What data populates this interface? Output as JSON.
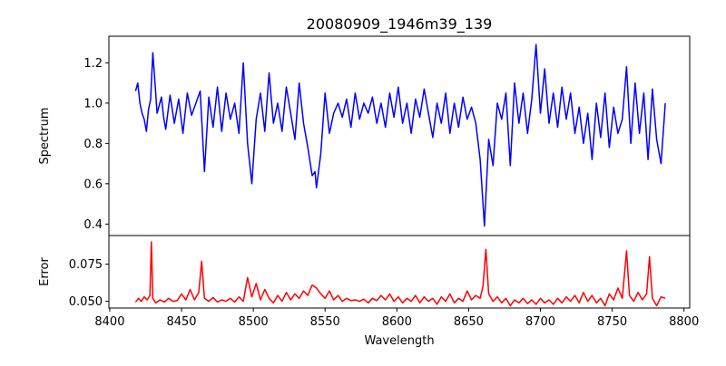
{
  "chart_data": [
    {
      "type": "line",
      "title": "20080909_1946m39_139",
      "xlabel": "",
      "ylabel": "Spectrum",
      "xlim": [
        8399.4,
        8804
      ],
      "ylim": [
        0.343,
        1.332
      ],
      "xticks": [
        8400,
        8450,
        8500,
        8550,
        8600,
        8650,
        8700,
        8750,
        8800
      ],
      "yticks": [
        "0.4",
        "0.6",
        "0.8",
        "1.0",
        "1.2"
      ],
      "color": "#0000ff",
      "series": [
        {
          "name": "Spectrum",
          "points": [
            [
              8418,
              1.06
            ],
            [
              8419.5,
              1.1
            ],
            [
              8421,
              1.0
            ],
            [
              8422.5,
              0.95
            ],
            [
              8424,
              0.92
            ],
            [
              8425.5,
              0.86
            ],
            [
              8427,
              0.97
            ],
            [
              8428.5,
              1.02
            ],
            [
              8430,
              1.25
            ],
            [
              8431.5,
              1.1
            ],
            [
              8433,
              0.95
            ],
            [
              8436,
              1.03
            ],
            [
              8437.5,
              0.93
            ],
            [
              8439,
              0.87
            ],
            [
              8442,
              1.04
            ],
            [
              8445,
              0.9
            ],
            [
              8448,
              1.02
            ],
            [
              8451,
              0.85
            ],
            [
              8454,
              1.05
            ],
            [
              8457,
              0.94
            ],
            [
              8460,
              1.0
            ],
            [
              8463,
              1.06
            ],
            [
              8466,
              0.66
            ],
            [
              8469,
              1.03
            ],
            [
              8472,
              0.88
            ],
            [
              8475,
              1.08
            ],
            [
              8478,
              0.86
            ],
            [
              8481,
              1.05
            ],
            [
              8484,
              0.92
            ],
            [
              8487,
              1.0
            ],
            [
              8490,
              0.85
            ],
            [
              8493,
              1.2
            ],
            [
              8496,
              0.8
            ],
            [
              8499,
              0.6
            ],
            [
              8502,
              0.92
            ],
            [
              8505,
              1.05
            ],
            [
              8508,
              0.86
            ],
            [
              8511,
              1.15
            ],
            [
              8514,
              0.9
            ],
            [
              8517,
              1.0
            ],
            [
              8520,
              0.86
            ],
            [
              8523,
              1.08
            ],
            [
              8526,
              0.95
            ],
            [
              8529,
              0.82
            ],
            [
              8532,
              1.1
            ],
            [
              8535,
              0.9
            ],
            [
              8538,
              0.78
            ],
            [
              8541,
              0.64
            ],
            [
              8543,
              0.66
            ],
            [
              8544,
              0.58
            ],
            [
              8547,
              0.75
            ],
            [
              8550,
              1.05
            ],
            [
              8553,
              0.85
            ],
            [
              8556,
              0.95
            ],
            [
              8559,
              1.0
            ],
            [
              8562,
              0.93
            ],
            [
              8565,
              1.02
            ],
            [
              8568,
              0.88
            ],
            [
              8571,
              1.05
            ],
            [
              8574,
              0.92
            ],
            [
              8577,
              1.0
            ],
            [
              8580,
              0.95
            ],
            [
              8583,
              1.03
            ],
            [
              8586,
              0.9
            ],
            [
              8589,
              1.0
            ],
            [
              8592,
              0.88
            ],
            [
              8595,
              1.05
            ],
            [
              8598,
              0.93
            ],
            [
              8601,
              1.08
            ],
            [
              8604,
              0.9
            ],
            [
              8607,
              1.0
            ],
            [
              8610,
              0.85
            ],
            [
              8613,
              1.02
            ],
            [
              8616,
              0.93
            ],
            [
              8619,
              1.07
            ],
            [
              8622,
              0.95
            ],
            [
              8625,
              0.83
            ],
            [
              8628,
              1.0
            ],
            [
              8631,
              0.9
            ],
            [
              8634,
              1.05
            ],
            [
              8637,
              0.85
            ],
            [
              8640,
              1.0
            ],
            [
              8643,
              0.88
            ],
            [
              8646,
              1.03
            ],
            [
              8649,
              0.92
            ],
            [
              8652,
              0.98
            ],
            [
              8655,
              0.9
            ],
            [
              8658,
              0.72
            ],
            [
              8661,
              0.39
            ],
            [
              8664,
              0.82
            ],
            [
              8667,
              0.69
            ],
            [
              8670,
              1.0
            ],
            [
              8673,
              0.92
            ],
            [
              8676,
              1.05
            ],
            [
              8679,
              0.69
            ],
            [
              8682,
              1.1
            ],
            [
              8685,
              0.9
            ],
            [
              8688,
              1.05
            ],
            [
              8691,
              0.85
            ],
            [
              8694,
              1.02
            ],
            [
              8697,
              1.29
            ],
            [
              8700,
              0.95
            ],
            [
              8703,
              1.17
            ],
            [
              8706,
              0.9
            ],
            [
              8709,
              1.05
            ],
            [
              8712,
              0.88
            ],
            [
              8715,
              1.08
            ],
            [
              8718,
              0.92
            ],
            [
              8721,
              1.05
            ],
            [
              8724,
              0.85
            ],
            [
              8727,
              0.98
            ],
            [
              8730,
              0.8
            ],
            [
              8733,
              0.95
            ],
            [
              8736,
              0.72
            ],
            [
              8739,
              1.0
            ],
            [
              8742,
              0.83
            ],
            [
              8745,
              1.05
            ],
            [
              8748,
              0.78
            ],
            [
              8751,
              0.98
            ],
            [
              8754,
              0.85
            ],
            [
              8757,
              0.92
            ],
            [
              8760,
              1.18
            ],
            [
              8763,
              0.8
            ],
            [
              8766,
              1.1
            ],
            [
              8769,
              0.85
            ],
            [
              8772,
              1.05
            ],
            [
              8775,
              0.72
            ],
            [
              8778,
              1.07
            ],
            [
              8781,
              0.82
            ],
            [
              8784,
              0.7
            ],
            [
              8787,
              1.0
            ]
          ]
        }
      ]
    },
    {
      "type": "line",
      "xlabel": "Wavelength",
      "ylabel": "Error",
      "xlim": [
        8399.4,
        8804
      ],
      "ylim": [
        0.0455,
        0.0943
      ],
      "xticks": [
        8400,
        8450,
        8500,
        8550,
        8600,
        8650,
        8700,
        8750,
        8800
      ],
      "yticks": [
        "0.050",
        "0.075"
      ],
      "color": "#ff0000",
      "series": [
        {
          "name": "Error",
          "points": [
            [
              8418,
              0.0495
            ],
            [
              8420,
              0.052
            ],
            [
              8422,
              0.05
            ],
            [
              8424,
              0.053
            ],
            [
              8426,
              0.051
            ],
            [
              8428,
              0.054
            ],
            [
              8429,
              0.09
            ],
            [
              8430,
              0.052
            ],
            [
              8432,
              0.049
            ],
            [
              8435,
              0.051
            ],
            [
              8438,
              0.0495
            ],
            [
              8441,
              0.052
            ],
            [
              8444,
              0.05
            ],
            [
              8447,
              0.0505
            ],
            [
              8450,
              0.055
            ],
            [
              8453,
              0.051
            ],
            [
              8456,
              0.058
            ],
            [
              8459,
              0.051
            ],
            [
              8462,
              0.056
            ],
            [
              8464,
              0.077
            ],
            [
              8466,
              0.052
            ],
            [
              8469,
              0.05
            ],
            [
              8472,
              0.0525
            ],
            [
              8475,
              0.0495
            ],
            [
              8478,
              0.051
            ],
            [
              8481,
              0.05
            ],
            [
              8484,
              0.052
            ],
            [
              8487,
              0.0495
            ],
            [
              8490,
              0.053
            ],
            [
              8493,
              0.05
            ],
            [
              8496,
              0.066
            ],
            [
              8499,
              0.053
            ],
            [
              8502,
              0.062
            ],
            [
              8505,
              0.051
            ],
            [
              8508,
              0.058
            ],
            [
              8511,
              0.052
            ],
            [
              8514,
              0.049
            ],
            [
              8517,
              0.054
            ],
            [
              8520,
              0.05
            ],
            [
              8523,
              0.056
            ],
            [
              8526,
              0.051
            ],
            [
              8529,
              0.055
            ],
            [
              8532,
              0.052
            ],
            [
              8535,
              0.057
            ],
            [
              8538,
              0.054
            ],
            [
              8541,
              0.061
            ],
            [
              8544,
              0.059
            ],
            [
              8547,
              0.055
            ],
            [
              8550,
              0.052
            ],
            [
              8553,
              0.057
            ],
            [
              8556,
              0.051
            ],
            [
              8559,
              0.054
            ],
            [
              8562,
              0.05
            ],
            [
              8565,
              0.052
            ],
            [
              8568,
              0.0505
            ],
            [
              8571,
              0.051
            ],
            [
              8574,
              0.05
            ],
            [
              8577,
              0.0515
            ],
            [
              8580,
              0.049
            ],
            [
              8583,
              0.052
            ],
            [
              8586,
              0.0505
            ],
            [
              8589,
              0.054
            ],
            [
              8592,
              0.051
            ],
            [
              8595,
              0.055
            ],
            [
              8598,
              0.05
            ],
            [
              8601,
              0.053
            ],
            [
              8604,
              0.049
            ],
            [
              8607,
              0.052
            ],
            [
              8610,
              0.05
            ],
            [
              8613,
              0.054
            ],
            [
              8616,
              0.049
            ],
            [
              8619,
              0.053
            ],
            [
              8622,
              0.05
            ],
            [
              8625,
              0.052
            ],
            [
              8628,
              0.048
            ],
            [
              8631,
              0.053
            ],
            [
              8634,
              0.05
            ],
            [
              8637,
              0.055
            ],
            [
              8640,
              0.049
            ],
            [
              8643,
              0.052
            ],
            [
              8646,
              0.05
            ],
            [
              8649,
              0.057
            ],
            [
              8652,
              0.051
            ],
            [
              8655,
              0.054
            ],
            [
              8658,
              0.052
            ],
            [
              8660,
              0.06
            ],
            [
              8662,
              0.085
            ],
            [
              8664,
              0.055
            ],
            [
              8667,
              0.05
            ],
            [
              8670,
              0.053
            ],
            [
              8673,
              0.049
            ],
            [
              8676,
              0.052
            ],
            [
              8679,
              0.047
            ],
            [
              8682,
              0.051
            ],
            [
              8685,
              0.049
            ],
            [
              8688,
              0.052
            ],
            [
              8691,
              0.0485
            ],
            [
              8694,
              0.051
            ],
            [
              8697,
              0.048
            ],
            [
              8700,
              0.052
            ],
            [
              8703,
              0.049
            ],
            [
              8706,
              0.051
            ],
            [
              8709,
              0.048
            ],
            [
              8712,
              0.052
            ],
            [
              8715,
              0.049
            ],
            [
              8718,
              0.053
            ],
            [
              8721,
              0.05
            ],
            [
              8724,
              0.054
            ],
            [
              8727,
              0.049
            ],
            [
              8730,
              0.056
            ],
            [
              8733,
              0.05
            ],
            [
              8736,
              0.054
            ],
            [
              8739,
              0.049
            ],
            [
              8742,
              0.052
            ],
            [
              8745,
              0.047
            ],
            [
              8748,
              0.055
            ],
            [
              8751,
              0.051
            ],
            [
              8754,
              0.059
            ],
            [
              8757,
              0.052
            ],
            [
              8760,
              0.084
            ],
            [
              8762,
              0.054
            ],
            [
              8765,
              0.05
            ],
            [
              8768,
              0.056
            ],
            [
              8771,
              0.051
            ],
            [
              8774,
              0.055
            ],
            [
              8776,
              0.08
            ],
            [
              8778,
              0.052
            ],
            [
              8781,
              0.047
            ],
            [
              8784,
              0.053
            ],
            [
              8787,
              0.052
            ]
          ]
        }
      ]
    }
  ]
}
